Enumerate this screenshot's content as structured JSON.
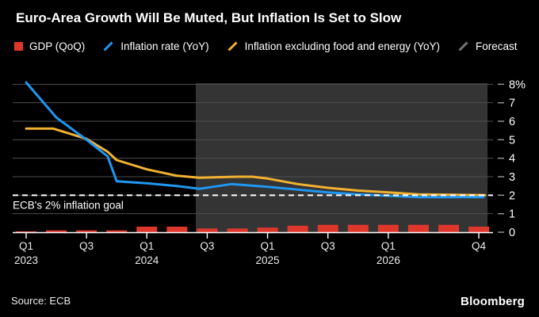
{
  "header": {
    "title": "Euro-Area Growth Will Be Muted, But Inflation Is Set to Slow"
  },
  "legend": [
    {
      "label": "GDP (QoQ)",
      "marker": "square",
      "color": "#e0372d"
    },
    {
      "label": "Inflation rate (YoY)",
      "marker": "slash",
      "color": "#2097f2"
    },
    {
      "label": "Inflation excluding food and energy (YoY)",
      "marker": "slash",
      "color": "#f2b232"
    },
    {
      "label": "Forecast",
      "marker": "slash",
      "color": "#757575"
    }
  ],
  "footer": {
    "source": "Source: ECB",
    "brand": "Bloomberg"
  },
  "chart_data": {
    "type": "mixed",
    "title": "Euro-Area Growth Will Be Muted, But Inflation Is Set to Slow",
    "x_axis": {
      "unit": "quarter index, 0 = Q1 2023 … 15 = Q4 2026",
      "ticks": [
        {
          "q": 0,
          "label": "Q1",
          "year": "2023"
        },
        {
          "q": 2,
          "label": "Q3",
          "year": ""
        },
        {
          "q": 4,
          "label": "Q1",
          "year": "2024"
        },
        {
          "q": 6,
          "label": "Q3",
          "year": ""
        },
        {
          "q": 8,
          "label": "Q1",
          "year": "2025"
        },
        {
          "q": 10,
          "label": "Q3",
          "year": ""
        },
        {
          "q": 12,
          "label": "Q1",
          "year": "2026"
        },
        {
          "q": 15,
          "label": "Q4",
          "year": ""
        }
      ]
    },
    "y_axis": {
      "min": 0,
      "max": 8,
      "step": 1,
      "top_label": "8%",
      "grid": true,
      "side": "right"
    },
    "reference_line": {
      "value": 2,
      "label": "ECB's 2% inflation goal",
      "style": "dashed",
      "color": "#ffffff"
    },
    "forecast_region": {
      "start_q": 5.62,
      "end_q": 15.29,
      "color": "#343434"
    },
    "colors": {
      "grid": "#4e4e4e",
      "axis": "#ffffff",
      "tick_text": "#ececec",
      "y_tick_dash": "#9a9a9a"
    },
    "series": [
      {
        "name": "GDP (QoQ)",
        "type": "bar",
        "color": "#e0372d",
        "quarters": [
          "Q1 2023",
          "Q2 2023",
          "Q3 2023",
          "Q4 2023",
          "Q1 2024",
          "Q2 2024",
          "Q3 2024",
          "Q4 2024",
          "Q1 2025",
          "Q2 2025",
          "Q3 2025",
          "Q4 2025",
          "Q1 2026",
          "Q2 2026",
          "Q3 2026",
          "Q4 2026"
        ],
        "values": [
          0.05,
          0.1,
          0.1,
          0.1,
          0.3,
          0.3,
          0.2,
          0.2,
          0.25,
          0.35,
          0.4,
          0.4,
          0.4,
          0.4,
          0.4,
          0.3
        ]
      },
      {
        "name": "Inflation rate (YoY)",
        "type": "line",
        "color": "#2097f2",
        "points": [
          [
            0,
            8.1
          ],
          [
            1,
            6.2
          ],
          [
            2,
            5.0
          ],
          [
            2.7,
            4.1
          ],
          [
            3.0,
            2.75
          ],
          [
            4,
            2.65
          ],
          [
            5,
            2.5
          ],
          [
            5.75,
            2.35
          ],
          [
            6.8,
            2.6
          ],
          [
            8,
            2.45
          ],
          [
            9,
            2.3
          ],
          [
            10,
            2.15
          ],
          [
            11,
            2.05
          ],
          [
            12,
            1.97
          ],
          [
            13,
            1.9
          ],
          [
            15.15,
            1.9
          ]
        ]
      },
      {
        "name": "Inflation excluding food and energy (YoY)",
        "type": "line",
        "color": "#f2b232",
        "points": [
          [
            0,
            5.6
          ],
          [
            0.9,
            5.6
          ],
          [
            2,
            5.05
          ],
          [
            2.7,
            4.35
          ],
          [
            3.0,
            3.9
          ],
          [
            4,
            3.4
          ],
          [
            5,
            3.05
          ],
          [
            5.75,
            2.95
          ],
          [
            7,
            3.0
          ],
          [
            7.5,
            3.0
          ],
          [
            8,
            2.9
          ],
          [
            9,
            2.6
          ],
          [
            10,
            2.4
          ],
          [
            11,
            2.25
          ],
          [
            12,
            2.15
          ],
          [
            13,
            2.05
          ],
          [
            15.2,
            2.0
          ]
        ]
      }
    ],
    "source": "Source: ECB"
  }
}
